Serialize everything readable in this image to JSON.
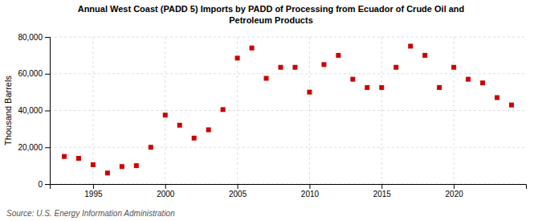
{
  "chart_data": {
    "type": "scatter",
    "title": "Annual West Coast (PADD 5) Imports by PADD of Processing from Ecuador of Crude Oil and\nPetroleum Products",
    "ylabel": "Thousand Barrels",
    "annotations": [
      "Source: U.S. Energy Information Administration"
    ],
    "x": [
      1993,
      1994,
      1995,
      1996,
      1997,
      1998,
      1999,
      2000,
      2001,
      2002,
      2003,
      2004,
      2005,
      2006,
      2007,
      2008,
      2009,
      2010,
      2011,
      2012,
      2013,
      2014,
      2015,
      2016,
      2017,
      2018,
      2019,
      2020,
      2021,
      2022,
      2023,
      2024
    ],
    "values": [
      15000,
      14000,
      10500,
      6000,
      9500,
      10000,
      20000,
      37500,
      32000,
      25000,
      29500,
      40500,
      68500,
      74000,
      57500,
      63500,
      63500,
      50000,
      65000,
      70000,
      57000,
      52500,
      52500,
      63500,
      75000,
      70000,
      52500,
      63500,
      57000,
      55000,
      47000,
      43000
    ],
    "color": "#cc0000",
    "marker": "square",
    "grid": true,
    "xlim": [
      1992,
      2025
    ],
    "xticks": [
      1995,
      2000,
      2005,
      2010,
      2015,
      2020
    ],
    "ylim": [
      0,
      80000
    ],
    "yticks": [
      0,
      {
        "value": 20000,
        "label": "20,000"
      },
      {
        "value": 40000,
        "label": "40,000"
      },
      {
        "value": 60000,
        "label": "60,000"
      },
      {
        "value": 80000,
        "label": "80,000"
      }
    ]
  }
}
